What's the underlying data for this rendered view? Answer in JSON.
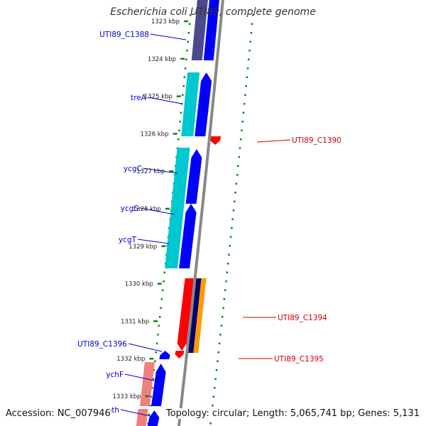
{
  "title": "Escherichia coli UTI89, complete genome",
  "footer": {
    "accession": "Accession: NC_007946",
    "topology": "Topology: circular; Length: 5,065,741 bp; Genes: 5,131"
  },
  "colors": {
    "forward_cds": "#0000ff",
    "reverse_cds": "#ff0000",
    "label_forward": "#0000cc",
    "label_reverse": "#cc0000",
    "cyan_track": "#00c8d0",
    "pink_track": "#f08080",
    "purple_track": "#4b4b8c",
    "navy_track": "#000066",
    "orange_track": "#ff9900",
    "backbone": "#888888",
    "ticks": "#008800"
  },
  "ruler": [
    {
      "label": "1323 kbp"
    },
    {
      "label": "1324 kbp"
    },
    {
      "label": "1325 kbp"
    },
    {
      "label": "1326 kbp"
    },
    {
      "label": "1327 kbp"
    },
    {
      "label": "1328 kbp"
    },
    {
      "label": "1329 kbp"
    },
    {
      "label": "1330 kbp"
    },
    {
      "label": "1331 kbp"
    },
    {
      "label": "1332 kbp"
    },
    {
      "label": "1333 kbp"
    }
  ],
  "genes": [
    {
      "name": "UTI89_C1388",
      "strand": "forward"
    },
    {
      "name": "treA",
      "strand": "forward"
    },
    {
      "name": "UTI89_C1390",
      "strand": "reverse"
    },
    {
      "name": "ycgC",
      "strand": "forward"
    },
    {
      "name": "ycgS",
      "strand": "forward"
    },
    {
      "name": "ycgT",
      "strand": "forward"
    },
    {
      "name": "UTI89_C1394",
      "strand": "reverse"
    },
    {
      "name": "UTI89_C1396",
      "strand": "forward"
    },
    {
      "name": "UTI89_C1395",
      "strand": "reverse"
    },
    {
      "name": "ychF",
      "strand": "forward"
    },
    {
      "name": "pth",
      "strand": "forward"
    }
  ]
}
